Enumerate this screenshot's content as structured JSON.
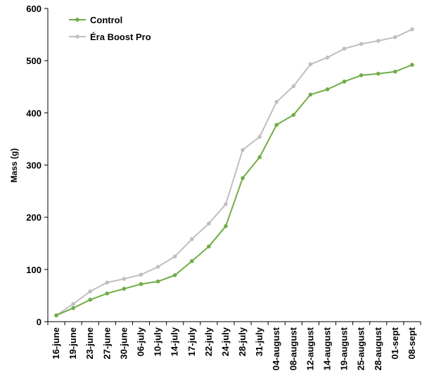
{
  "chart_data": {
    "type": "line",
    "title": "",
    "xlabel": "",
    "ylabel": "Mass (g)",
    "ylim": [
      0,
      600
    ],
    "yticks": [
      0,
      100,
      200,
      300,
      400,
      500,
      600
    ],
    "grid": false,
    "legend_position": "top-left",
    "categories": [
      "16-june",
      "19-june",
      "23-june",
      "27-june",
      "30-june",
      "06-july",
      "10-july",
      "14-july",
      "17-july",
      "22-july",
      "24-july",
      "28-july",
      "31-july",
      "04-august",
      "08-august",
      "12-august",
      "14-august",
      "19-august",
      "25-august",
      "28-august",
      "01-sept",
      "08-sept"
    ],
    "series": [
      {
        "name": "Control",
        "color": "#70AD47",
        "values": [
          12,
          26,
          42,
          54,
          63,
          72,
          77,
          89,
          116,
          144,
          183,
          275,
          315,
          377,
          396,
          435,
          445,
          460,
          472,
          475,
          479,
          492
        ]
      },
      {
        "name": "Éra Boost Pro",
        "color": "#BFBFBF",
        "values": [
          12,
          34,
          58,
          75,
          82,
          90,
          105,
          125,
          158,
          188,
          225,
          329,
          354,
          421,
          451,
          493,
          506,
          523,
          532,
          538,
          545,
          560
        ]
      }
    ]
  }
}
